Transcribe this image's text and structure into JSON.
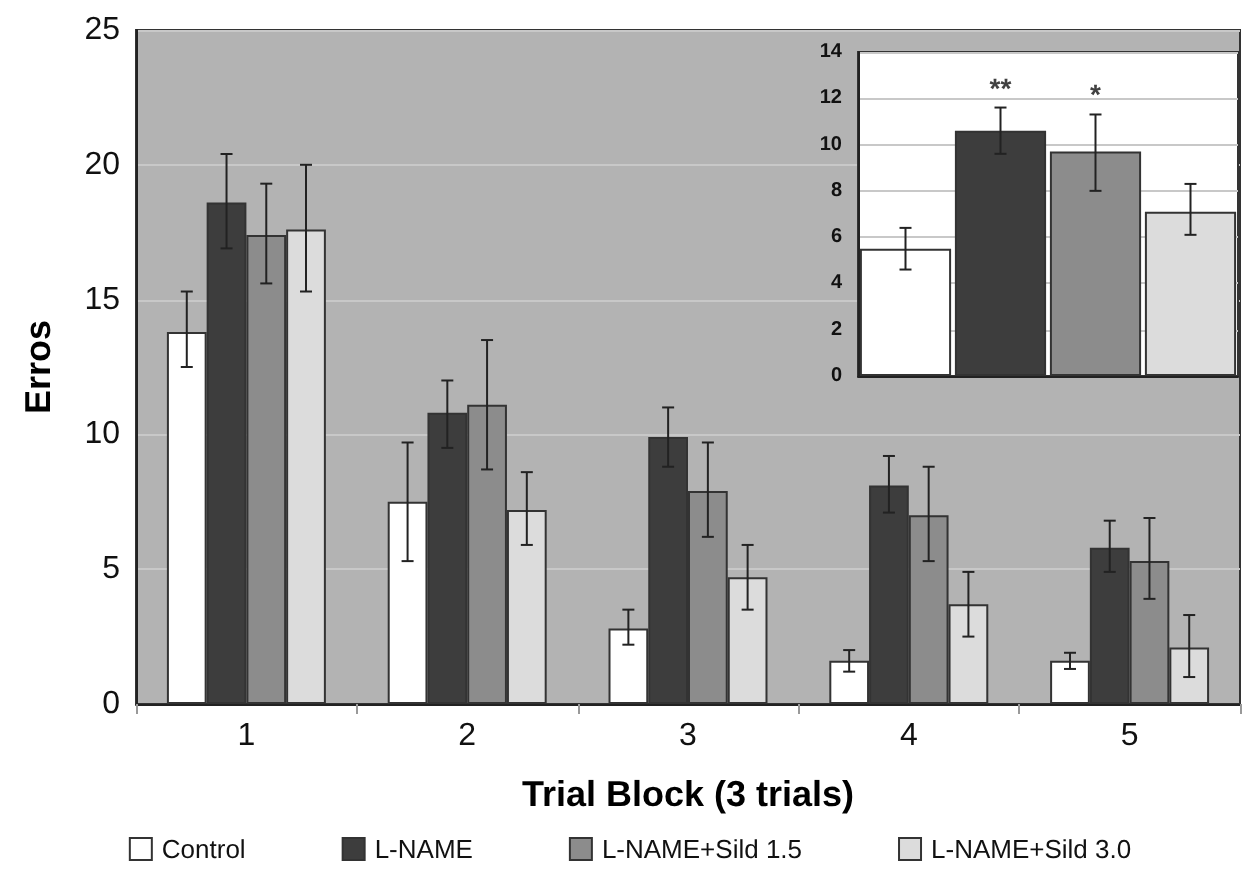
{
  "chart_data": [
    {
      "type": "bar",
      "xlabel": "Trial Block (3 trials)",
      "ylabel": "Erros",
      "categories": [
        "1",
        "2",
        "3",
        "4",
        "5"
      ],
      "series": [
        {
          "name": "Control",
          "color": "#ffffff",
          "values": [
            13.8,
            7.5,
            2.8,
            1.6,
            1.6
          ],
          "errors": [
            [
              12.5,
              15.3
            ],
            [
              5.3,
              9.7
            ],
            [
              2.2,
              3.5
            ],
            [
              1.2,
              2.0
            ],
            [
              1.3,
              1.9
            ]
          ]
        },
        {
          "name": "L-NAME",
          "color": "#3d3d3d",
          "values": [
            18.6,
            10.8,
            9.9,
            8.1,
            5.8
          ],
          "errors": [
            [
              16.9,
              20.4
            ],
            [
              9.5,
              12.0
            ],
            [
              8.8,
              11.0
            ],
            [
              7.1,
              9.2
            ],
            [
              4.9,
              6.8
            ]
          ]
        },
        {
          "name": "L-NAME+Sild 1.5",
          "color": "#8c8c8c",
          "values": [
            17.4,
            11.1,
            7.9,
            7.0,
            5.3
          ],
          "errors": [
            [
              15.6,
              19.3
            ],
            [
              8.7,
              13.5
            ],
            [
              6.2,
              9.7
            ],
            [
              5.3,
              8.8
            ],
            [
              3.9,
              6.9
            ]
          ]
        },
        {
          "name": "L-NAME+Sild 3.0",
          "color": "#dcdcdc",
          "values": [
            17.6,
            7.2,
            4.7,
            3.7,
            2.1
          ],
          "errors": [
            [
              15.3,
              20.0
            ],
            [
              5.9,
              8.6
            ],
            [
              3.5,
              5.9
            ],
            [
              2.5,
              4.9
            ],
            [
              1.0,
              3.3
            ]
          ]
        }
      ],
      "ylim": [
        0,
        25
      ],
      "yticks": [
        0,
        5,
        10,
        15,
        20,
        25
      ],
      "grid": "y",
      "legend": "bottom"
    },
    {
      "type": "bar",
      "categories": [
        null,
        null,
        null,
        null
      ],
      "values": [
        5.5,
        10.6,
        9.7,
        7.1
      ],
      "colors": [
        "#ffffff",
        "#3d3d3d",
        "#8c8c8c",
        "#dcdcdc"
      ],
      "errors": [
        [
          4.6,
          6.4
        ],
        [
          9.6,
          11.6
        ],
        [
          8.0,
          11.3
        ],
        [
          6.1,
          8.3
        ]
      ],
      "ylim": [
        0,
        14
      ],
      "yticks": [
        0,
        2,
        4,
        6,
        8,
        10,
        12,
        14
      ],
      "grid": "y",
      "value_labels": [
        null,
        "**",
        "*",
        null
      ]
    }
  ]
}
